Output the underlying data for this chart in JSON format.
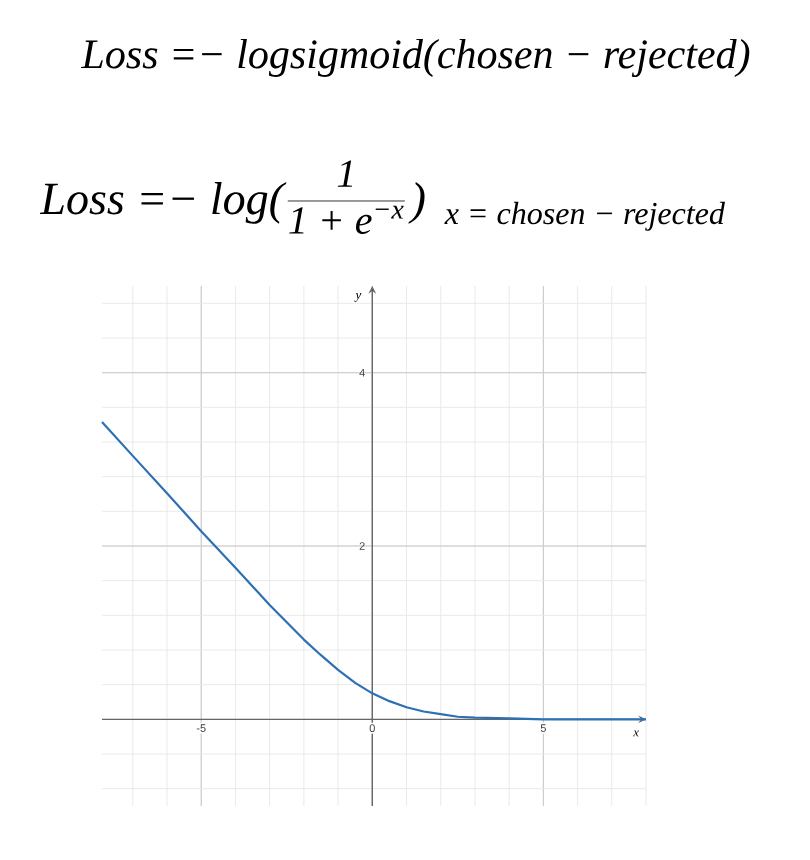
{
  "chart_data": {
    "type": "line",
    "title": "Loss =− logsigmoid(chosen − rejected)",
    "annotations": [
      "Loss =− log(",
      "1",
      "1 + e$^{−x}$",
      ")",
      "x = chosen − rejected"
    ],
    "xlabel": "x",
    "ylabel": "y",
    "x": [
      -7.9,
      -7,
      -6,
      -5,
      -4,
      -3,
      -2.5,
      -2,
      -1.5,
      -1,
      -0.5,
      0,
      0.5,
      1,
      1.5,
      2,
      2.5,
      3,
      4,
      5,
      6,
      7,
      8
    ],
    "series": [
      {
        "color": "#2d70b3",
        "values": [
          3.43,
          3.04,
          2.61,
          2.17,
          1.75,
          1.32,
          1.12,
          0.92,
          0.74,
          0.57,
          0.42,
          0.3,
          0.21,
          0.14,
          0.09,
          0.06,
          0.03,
          0.02,
          0.01,
          0,
          0,
          0,
          0
        ]
      }
    ],
    "xlim": [
      -7.9,
      8
    ],
    "ylim": [
      -1,
      5
    ],
    "xticks": [
      -5,
      0,
      5
    ],
    "yticks": [
      2,
      4
    ],
    "grid": true
  }
}
